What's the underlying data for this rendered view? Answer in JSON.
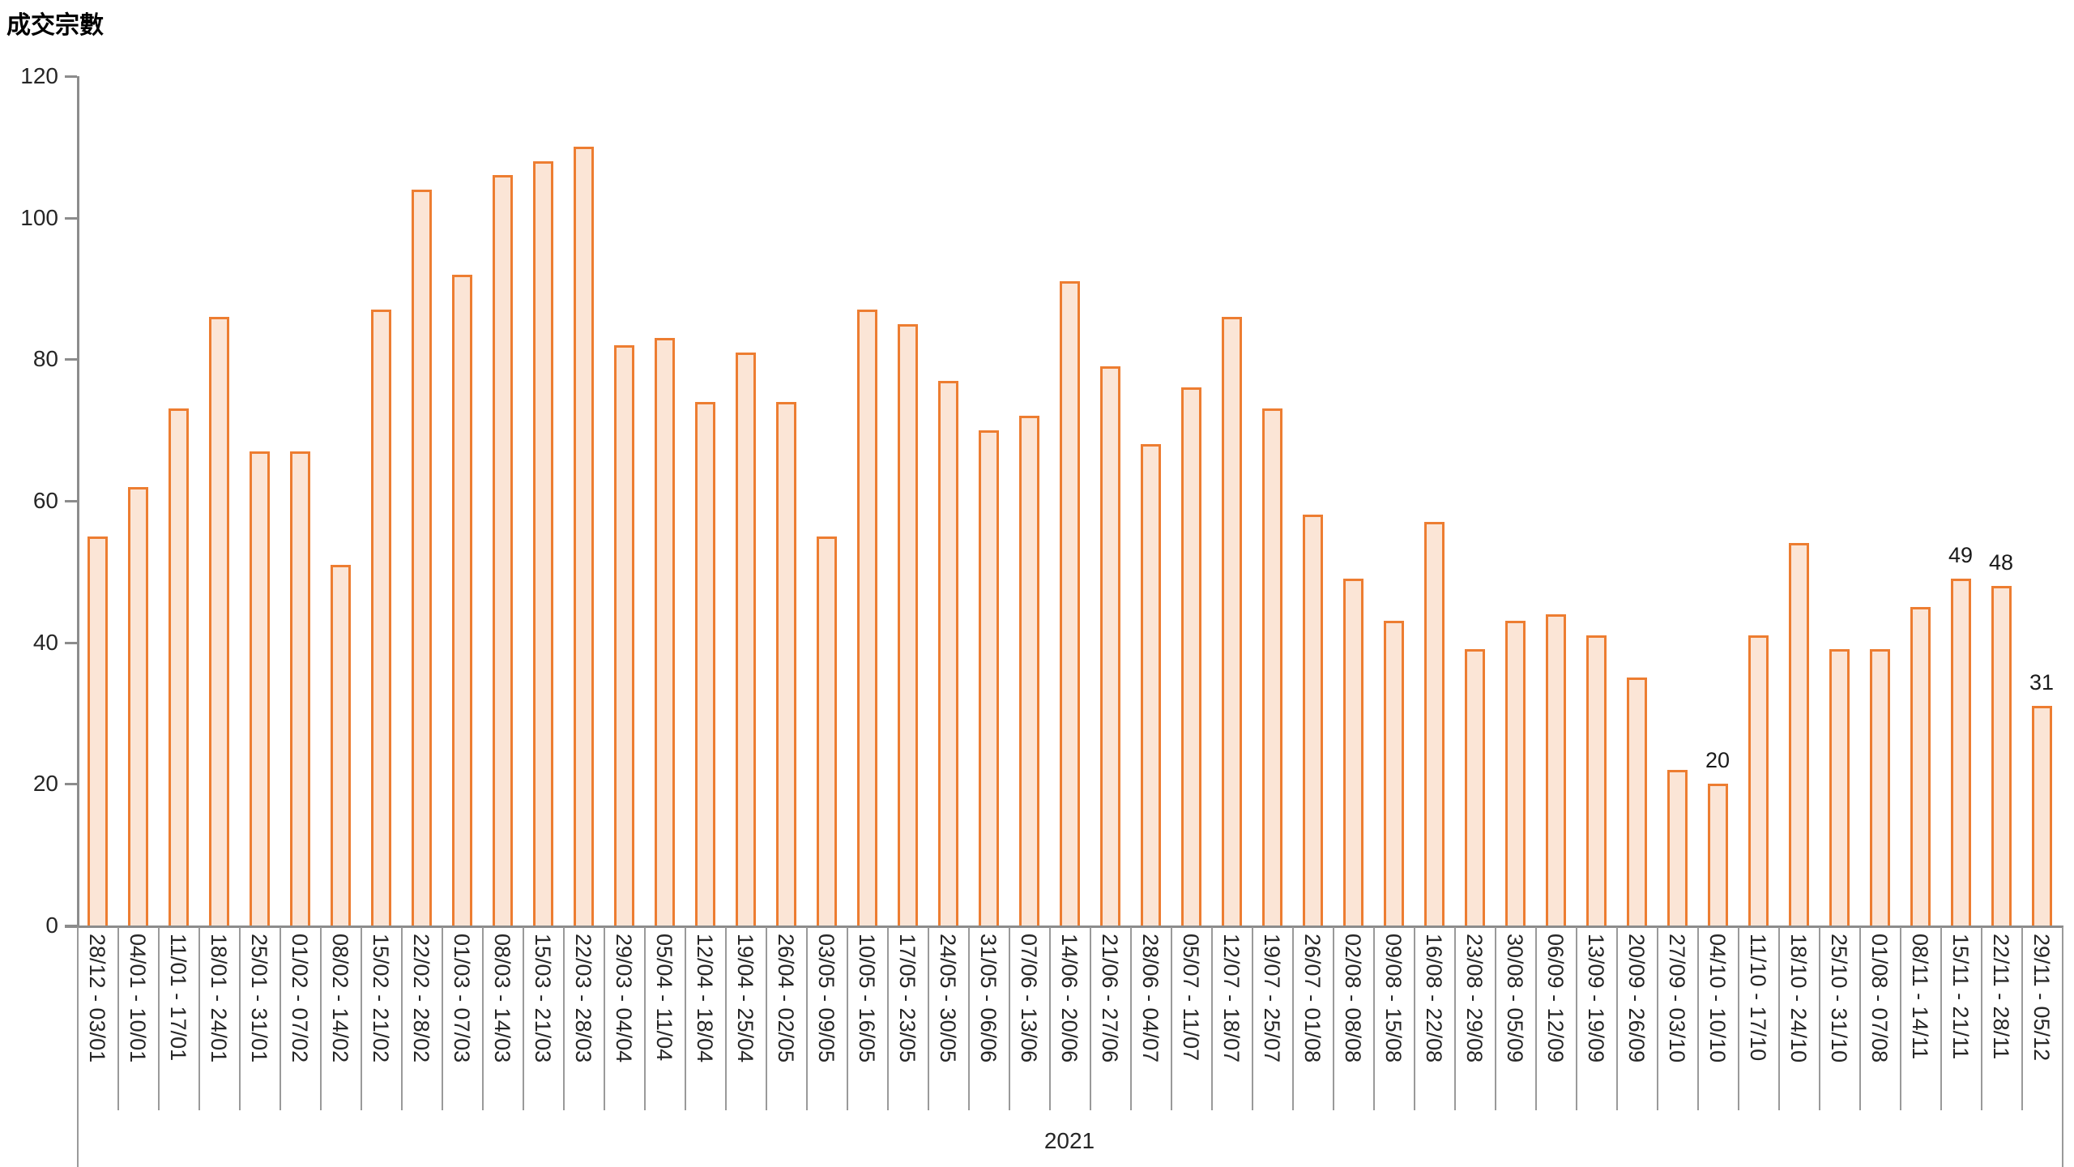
{
  "chart_data": {
    "type": "bar",
    "title": "成交宗數",
    "x_group_label": "2021",
    "xlabel": "",
    "ylabel": "成交宗數",
    "ylim": [
      0,
      120
    ],
    "yticks": [
      0,
      20,
      40,
      60,
      80,
      100,
      120
    ],
    "grid": false,
    "legend": false,
    "categories": [
      "28/12 - 03/01",
      "04/01 - 10/01",
      "11/01 - 17/01",
      "18/01 - 24/01",
      "25/01 - 31/01",
      "01/02 - 07/02",
      "08/02 - 14/02",
      "15/02 - 21/02",
      "22/02 - 28/02",
      "01/03 - 07/03",
      "08/03 - 14/03",
      "15/03 - 21/03",
      "22/03 - 28/03",
      "29/03 - 04/04",
      "05/04 - 11/04",
      "12/04 - 18/04",
      "19/04 - 25/04",
      "26/04 - 02/05",
      "03/05 - 09/05",
      "10/05 - 16/05",
      "17/05 - 23/05",
      "24/05 - 30/05",
      "31/05 - 06/06",
      "07/06 - 13/06",
      "14/06 - 20/06",
      "21/06 - 27/06",
      "28/06 - 04/07",
      "05/07 - 11/07",
      "12/07 - 18/07",
      "19/07 - 25/07",
      "26/07 - 01/08",
      "02/08 - 08/08",
      "09/08 - 15/08",
      "16/08 - 22/08",
      "23/08 - 29/08",
      "30/08 - 05/09",
      "06/09 - 12/09",
      "13/09 - 19/09",
      "20/09 - 26/09",
      "27/09 - 03/10",
      "04/10 - 10/10",
      "11/10 - 17/10",
      "18/10 - 24/10",
      "25/10 - 31/10",
      "01/08 - 07/08",
      "08/11 - 14/11",
      "15/11 - 21/11",
      "22/11 - 28/11",
      "29/11 - 05/12"
    ],
    "values": [
      55,
      62,
      73,
      86,
      67,
      67,
      51,
      87,
      104,
      92,
      106,
      108,
      110,
      82,
      83,
      74,
      81,
      74,
      55,
      87,
      85,
      77,
      70,
      72,
      91,
      79,
      68,
      76,
      86,
      73,
      58,
      49,
      43,
      57,
      39,
      43,
      44,
      41,
      35,
      22,
      20,
      41,
      54,
      39,
      39,
      45,
      49,
      48,
      31
    ],
    "data_labels": [
      null,
      null,
      null,
      null,
      null,
      null,
      null,
      null,
      null,
      null,
      null,
      null,
      null,
      null,
      null,
      null,
      null,
      null,
      null,
      null,
      null,
      null,
      null,
      null,
      null,
      null,
      null,
      null,
      null,
      null,
      null,
      null,
      null,
      null,
      null,
      null,
      null,
      null,
      null,
      null,
      "20",
      null,
      null,
      null,
      null,
      null,
      "49",
      "48",
      "31"
    ],
    "colors": {
      "bar_fill": "#FBE5D6",
      "bar_border": "#ED7D31",
      "axis_line": "#8C8C8C",
      "text": "#262626"
    }
  }
}
